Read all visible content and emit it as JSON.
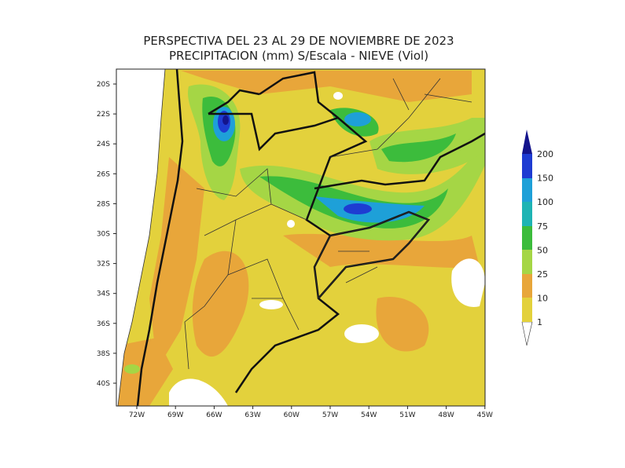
{
  "title": {
    "line1": "PERSPECTIVA DEL 23 AL 29 DE NOVIEMBRE DE 2023",
    "line2": "PRECIPITACION (mm) S/Escala - NIEVE (Viol)"
  },
  "map": {
    "lat_labels": [
      "20S",
      "22S",
      "24S",
      "26S",
      "28S",
      "30S",
      "32S",
      "34S",
      "36S",
      "38S",
      "40S"
    ],
    "lon_labels": [
      "72W",
      "69W",
      "66W",
      "63W",
      "60W",
      "57W",
      "54W",
      "51W",
      "48W",
      "45W"
    ]
  },
  "legend": {
    "labels": [
      "200",
      "150",
      "100",
      "75",
      "50",
      "25",
      "10",
      "1"
    ]
  }
}
